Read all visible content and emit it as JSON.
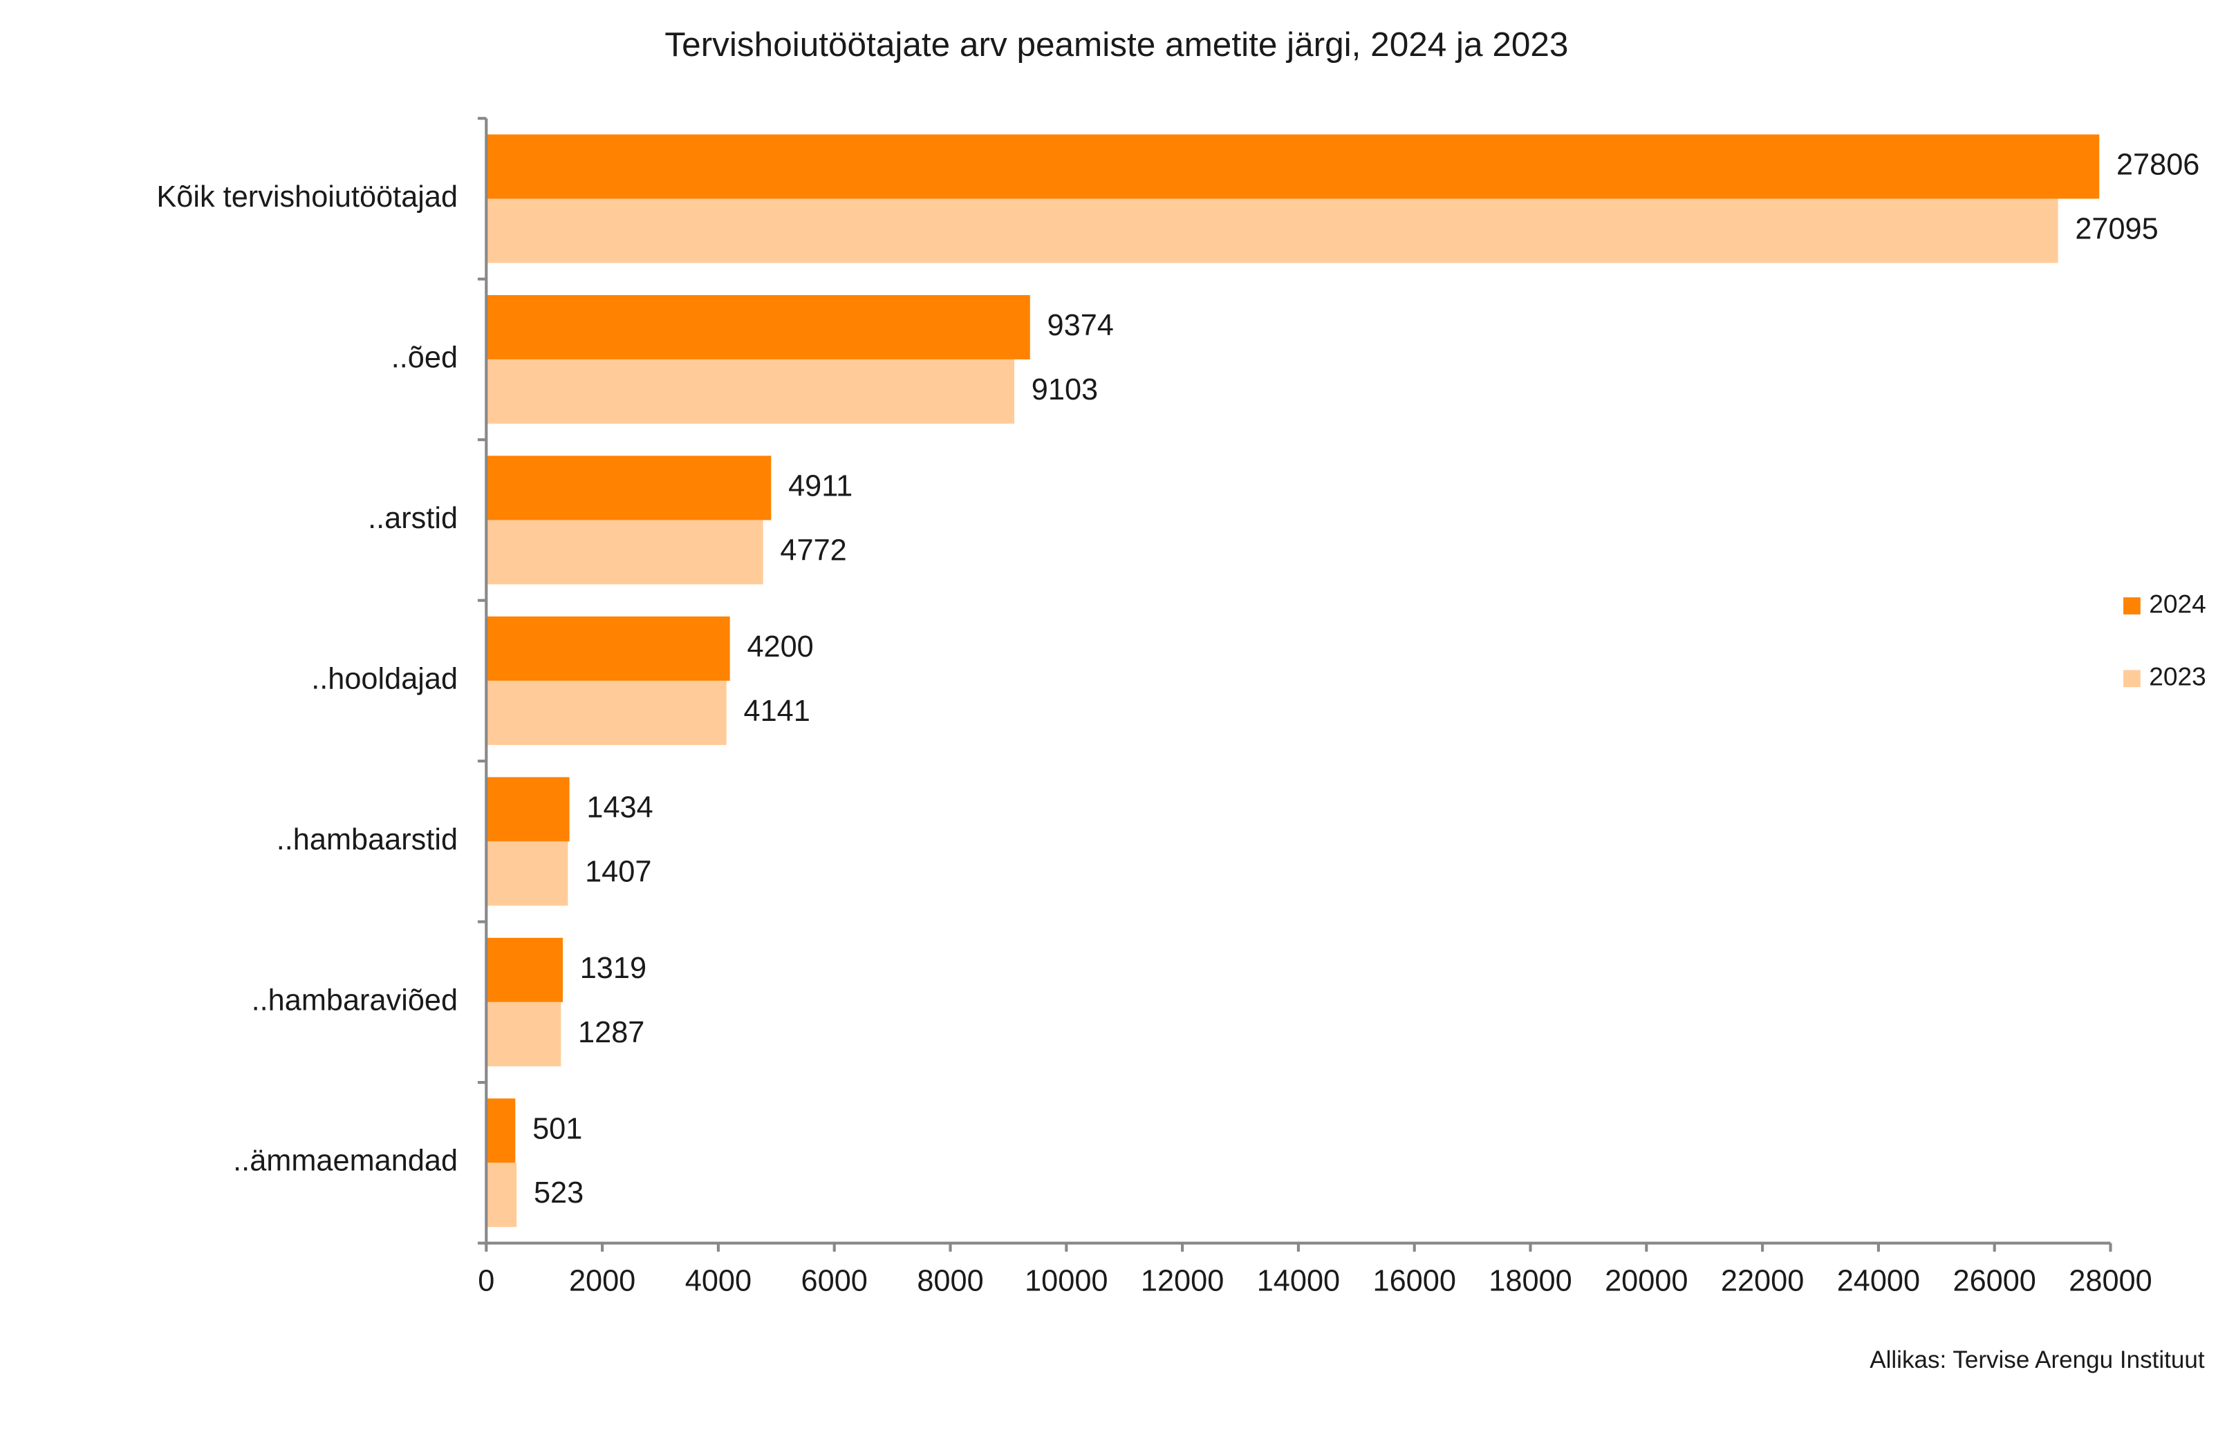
{
  "chart_data": {
    "type": "bar",
    "orientation": "horizontal",
    "title": "Tervishoiutöötajate arv peamiste ametite järgi, 2024 ja 2023",
    "categories": [
      "Kõik tervishoiutöötajad",
      "..õed",
      "..arstid",
      "..hooldajad",
      "..hambaarstid",
      "..hambaraviõed",
      "..ämmaemandad"
    ],
    "series": [
      {
        "name": "2024",
        "color": "#ff8200",
        "values": [
          27806,
          9374,
          4911,
          4200,
          1434,
          1319,
          501
        ]
      },
      {
        "name": "2023",
        "color": "#ffcc99",
        "values": [
          27095,
          9103,
          4772,
          4141,
          1407,
          1287,
          523
        ]
      }
    ],
    "xlim": [
      0,
      28000
    ],
    "xticks": [
      0,
      2000,
      4000,
      6000,
      8000,
      10000,
      12000,
      14000,
      16000,
      18000,
      20000,
      22000,
      24000,
      26000,
      28000
    ],
    "grid": false,
    "legend": "right",
    "source": "Allikas: Tervise Arengu Instituut"
  }
}
